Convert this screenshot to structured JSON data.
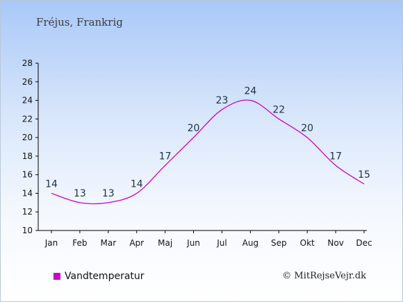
{
  "header": {
    "title": "Fréjus, Frankrig"
  },
  "legend": {
    "label": "Vandtemperatur",
    "color": "#cc00cc"
  },
  "credit": "© MitRejseVejr.dk",
  "chart_data": {
    "type": "line",
    "categories": [
      "Jan",
      "Feb",
      "Mar",
      "Apr",
      "Maj",
      "Jun",
      "Jul",
      "Aug",
      "Sep",
      "Okt",
      "Nov",
      "Dec"
    ],
    "series": [
      {
        "name": "Vandtemperatur",
        "values": [
          14,
          13,
          13,
          14,
          17,
          20,
          23,
          24,
          22,
          20,
          17,
          15
        ],
        "color": "#cc00cc"
      }
    ],
    "ylim": [
      10,
      28
    ],
    "yticks": [
      10,
      12,
      14,
      16,
      18,
      20,
      22,
      24,
      26,
      28
    ],
    "grid": false,
    "legend_position": "bottom-left"
  }
}
